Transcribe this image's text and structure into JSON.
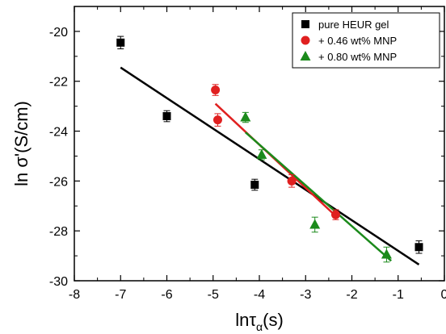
{
  "chart_data": {
    "type": "scatter",
    "title": "",
    "xlabel": "lnτ_α(s)",
    "xlabel_main": "lnτ",
    "xlabel_sub": "α",
    "xlabel_suffix": "(s)",
    "ylabel": "ln σ'(S/cm)",
    "xlim": [
      -8,
      0
    ],
    "ylim": [
      -30,
      -19
    ],
    "x_ticks": [
      -8,
      -7,
      -6,
      -5,
      -4,
      -3,
      -2,
      -1,
      0
    ],
    "x_tick_labels": [
      "-8",
      "-7",
      "-6",
      "-5",
      "-4",
      "-3",
      "-2",
      "-1",
      "0"
    ],
    "y_ticks": [
      -30,
      -28,
      -26,
      -24,
      -22,
      -20
    ],
    "y_tick_labels": [
      "-30",
      "-28",
      "-26",
      "-24",
      "-22",
      "-20"
    ],
    "grid": false,
    "legend_position": "top-right",
    "series": [
      {
        "name": "pure HEUR gel",
        "marker": "square",
        "color": "#000000",
        "points": [
          {
            "x": -7.0,
            "y": -20.45,
            "err": 0.25
          },
          {
            "x": -6.0,
            "y": -23.4,
            "err": 0.22
          },
          {
            "x": -4.1,
            "y": -26.15,
            "err": 0.22
          },
          {
            "x": -0.55,
            "y": -28.65,
            "err": 0.25
          }
        ],
        "fit": {
          "x": [
            -7.0,
            -0.55
          ],
          "y": [
            -21.45,
            -29.35
          ]
        }
      },
      {
        "name": "+ 0.46 wt% MNP",
        "marker": "circle",
        "color": "#e02020",
        "points": [
          {
            "x": -4.95,
            "y": -22.35,
            "err": 0.22
          },
          {
            "x": -4.9,
            "y": -23.55,
            "err": 0.25
          },
          {
            "x": -3.3,
            "y": -26.0,
            "err": 0.25
          },
          {
            "x": -2.35,
            "y": -27.35,
            "err": 0.2
          }
        ],
        "fit": {
          "x": [
            -4.95,
            -2.35
          ],
          "y": [
            -22.9,
            -27.4
          ]
        }
      },
      {
        "name": "+ 0.80 wt% MNP",
        "marker": "triangle",
        "color": "#1b8a1b",
        "points": [
          {
            "x": -4.3,
            "y": -23.45,
            "err": 0.2
          },
          {
            "x": -3.95,
            "y": -24.95,
            "err": 0.2
          },
          {
            "x": -2.8,
            "y": -27.75,
            "err": 0.3
          },
          {
            "x": -1.25,
            "y": -28.95,
            "err": 0.3
          }
        ],
        "fit": {
          "x": [
            -4.3,
            -1.15
          ],
          "y": [
            -24.05,
            -29.2
          ]
        }
      }
    ]
  }
}
